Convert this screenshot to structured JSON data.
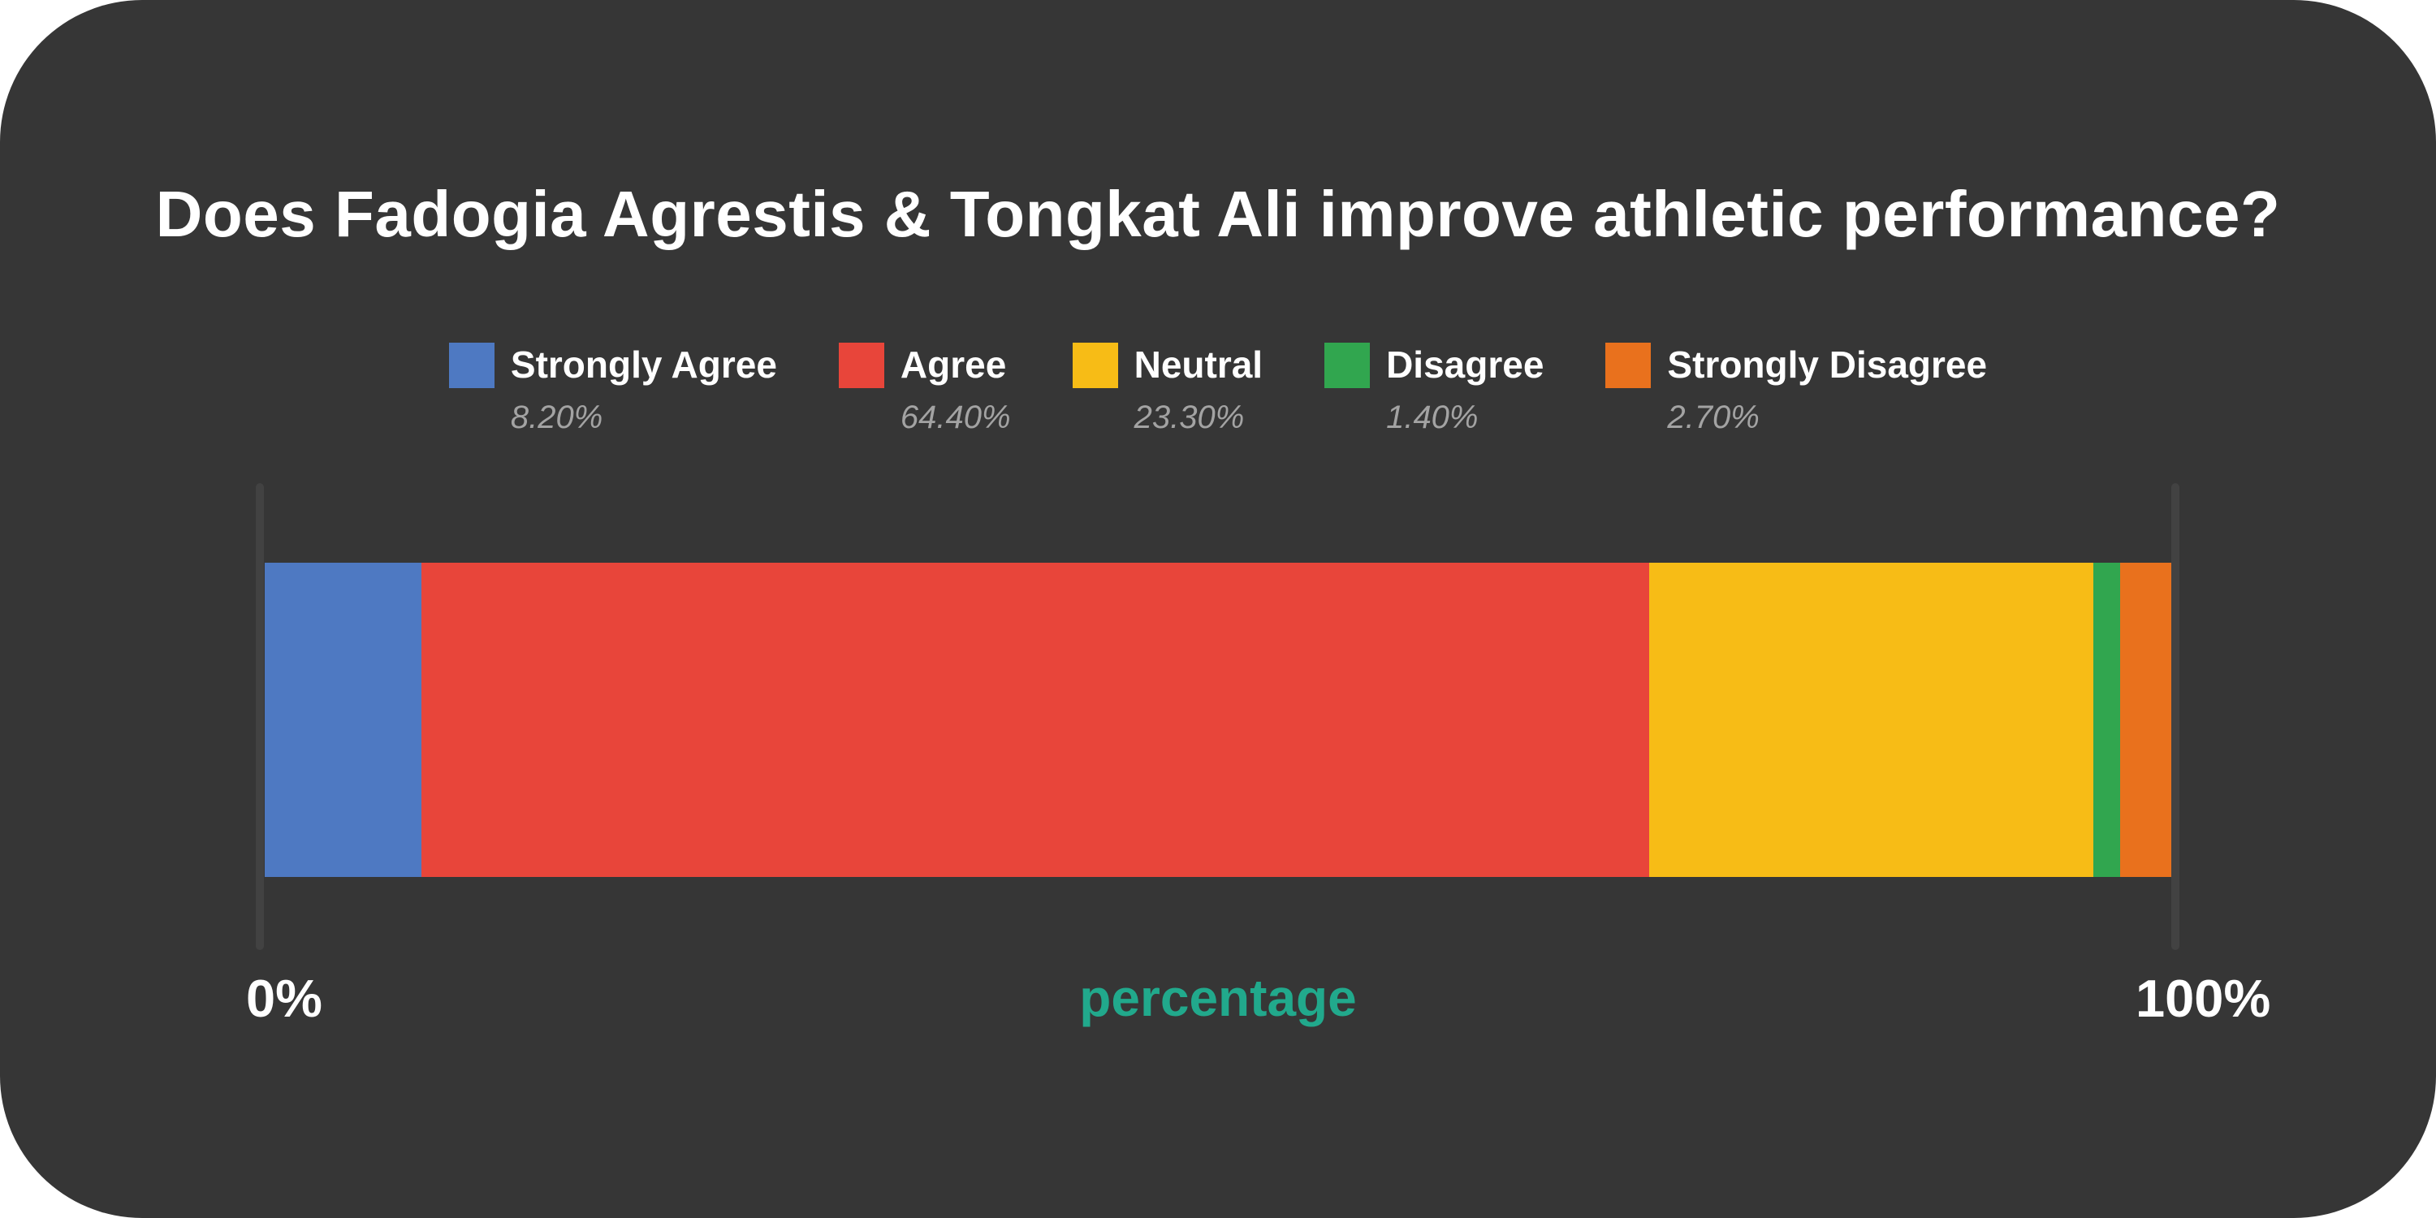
{
  "page": {
    "background": "#ffffff",
    "card_background": "#363636",
    "axis_line_color": "#424242",
    "text_color": "#ffffff",
    "muted_text_color": "#a3a3a3",
    "accent_color": "#21a98c"
  },
  "title": "Does Fadogia Agrestis & Tongkat Ali improve athletic performance?",
  "chart_data": {
    "type": "bar",
    "subtype": "horizontal-stacked-percentage",
    "title": "Does Fadogia Agrestis & Tongkat Ali improve athletic performance?",
    "xlabel": "percentage",
    "xlabel_color": "#21a98c",
    "xlim": [
      0,
      100
    ],
    "x_tick_labels": {
      "min": "0%",
      "max": "100%"
    },
    "grid": "off",
    "legend_position": "top-center",
    "series": [
      {
        "name": "Strongly Agree",
        "value": 8.2,
        "value_label": "8.20%",
        "color": "#4e79c2"
      },
      {
        "name": "Agree",
        "value": 64.4,
        "value_label": "64.40%",
        "color": "#e8453a"
      },
      {
        "name": "Neutral",
        "value": 23.3,
        "value_label": "23.30%",
        "color": "#f7bc16"
      },
      {
        "name": "Disagree",
        "value": 1.4,
        "value_label": "1.40%",
        "color": "#31a64f"
      },
      {
        "name": "Strongly Disagree",
        "value": 2.7,
        "value_label": "2.70%",
        "color": "#e9711d"
      }
    ]
  }
}
